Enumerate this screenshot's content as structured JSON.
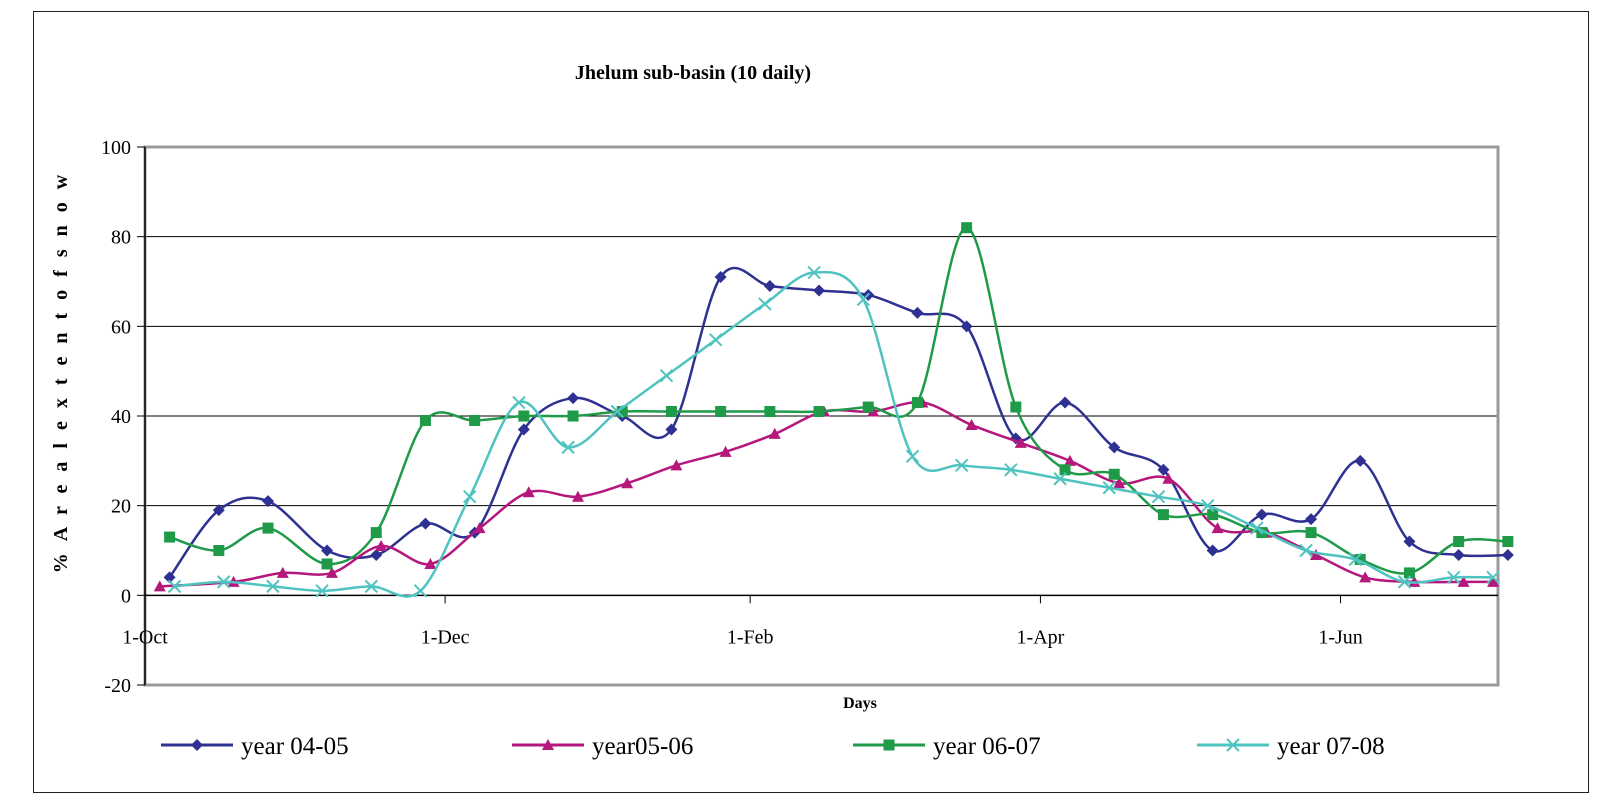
{
  "chart_data": {
    "type": "line",
    "title": "Jhelum sub-basin (10 daily)",
    "xlabel": "Days",
    "ylabel": "% A r e a l   e x t e n t   o f   s n o w",
    "ylim": [
      -20,
      100
    ],
    "yticks": [
      -20,
      0,
      20,
      40,
      60,
      80,
      100
    ],
    "xlim": [
      0,
      275
    ],
    "xticks": [
      {
        "label": "1-Oct",
        "day": 0
      },
      {
        "label": "1-Dec",
        "day": 61
      },
      {
        "label": "1-Feb",
        "day": 123
      },
      {
        "label": "1-Apr",
        "day": 182
      },
      {
        "label": "1-Jun",
        "day": 243
      }
    ],
    "grid": "horizontal",
    "legend_position": "bottom",
    "series": [
      {
        "name": "year 04-05",
        "color": "#2e3192",
        "marker": "diamond",
        "x": [
          5,
          15,
          25,
          37,
          47,
          57,
          67,
          77,
          87,
          97,
          107,
          117,
          127,
          137,
          147,
          157,
          167,
          177,
          187,
          197,
          207,
          217,
          227,
          237,
          247,
          257,
          267,
          277
        ],
        "y": [
          4,
          19,
          21,
          10,
          9,
          16,
          14,
          37,
          44,
          40,
          37,
          71,
          69,
          68,
          67,
          63,
          60,
          35,
          43,
          33,
          28,
          10,
          18,
          17,
          30,
          12,
          9,
          9
        ]
      },
      {
        "name": "year05-06",
        "color": "#b5177c",
        "marker": "triangle",
        "x": [
          3,
          18,
          28,
          38,
          48,
          58,
          68,
          78,
          88,
          98,
          108,
          118,
          128,
          138,
          148,
          158,
          168,
          178,
          188,
          198,
          208,
          218,
          228,
          238,
          248,
          258,
          268,
          274
        ],
        "y": [
          2,
          3,
          5,
          5,
          11,
          7,
          15,
          23,
          22,
          25,
          29,
          32,
          36,
          41,
          41,
          43,
          38,
          34,
          30,
          25,
          26,
          15,
          14,
          9,
          4,
          3,
          3,
          3
        ]
      },
      {
        "name": "year 06-07",
        "color": "#1f9a48",
        "marker": "square",
        "x": [
          5,
          15,
          25,
          37,
          47,
          57,
          67,
          77,
          87,
          97,
          107,
          117,
          127,
          137,
          147,
          157,
          167,
          177,
          187,
          197,
          207,
          217,
          227,
          237,
          247,
          257,
          267,
          277
        ],
        "y": [
          13,
          10,
          15,
          7,
          14,
          39,
          39,
          40,
          40,
          41,
          41,
          41,
          41,
          41,
          42,
          43,
          82,
          42,
          28,
          27,
          18,
          18,
          14,
          14,
          8,
          5,
          12,
          12
        ]
      },
      {
        "name": "year 07-08",
        "color": "#4fc3c0",
        "marker": "x",
        "x": [
          6,
          16,
          26,
          36,
          46,
          56,
          66,
          76,
          86,
          96,
          106,
          116,
          126,
          136,
          146,
          156,
          166,
          176,
          186,
          196,
          206,
          216,
          226,
          236,
          246,
          256,
          266,
          274
        ],
        "y": [
          2,
          3,
          2,
          1,
          2,
          1,
          22,
          43,
          33,
          41,
          49,
          57,
          65,
          72,
          66,
          31,
          29,
          28,
          26,
          24,
          22,
          20,
          15,
          10,
          8,
          3,
          4,
          4
        ]
      }
    ]
  }
}
